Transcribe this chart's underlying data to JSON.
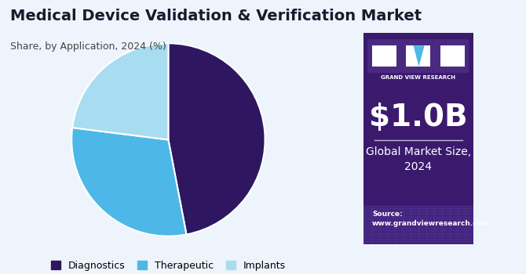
{
  "title": "Medical Device Validation & Verification Market",
  "subtitle": "Share, by Application, 2024 (%)",
  "slices": [
    0.47,
    0.3,
    0.23
  ],
  "labels": [
    "Diagnostics",
    "Therapeutic",
    "Implants"
  ],
  "colors": [
    "#2E1760",
    "#4DB8E8",
    "#A8DCF0"
  ],
  "bg_color": "#EEF4FB",
  "right_panel_color": "#3B1A6E",
  "market_size": "$1.0B",
  "market_label": "Global Market Size,\n2024",
  "source_text": "Source:\nwww.grandviewresearch.com",
  "title_fontsize": 14,
  "subtitle_fontsize": 9,
  "legend_fontsize": 9,
  "market_size_fontsize": 28,
  "market_label_fontsize": 10
}
